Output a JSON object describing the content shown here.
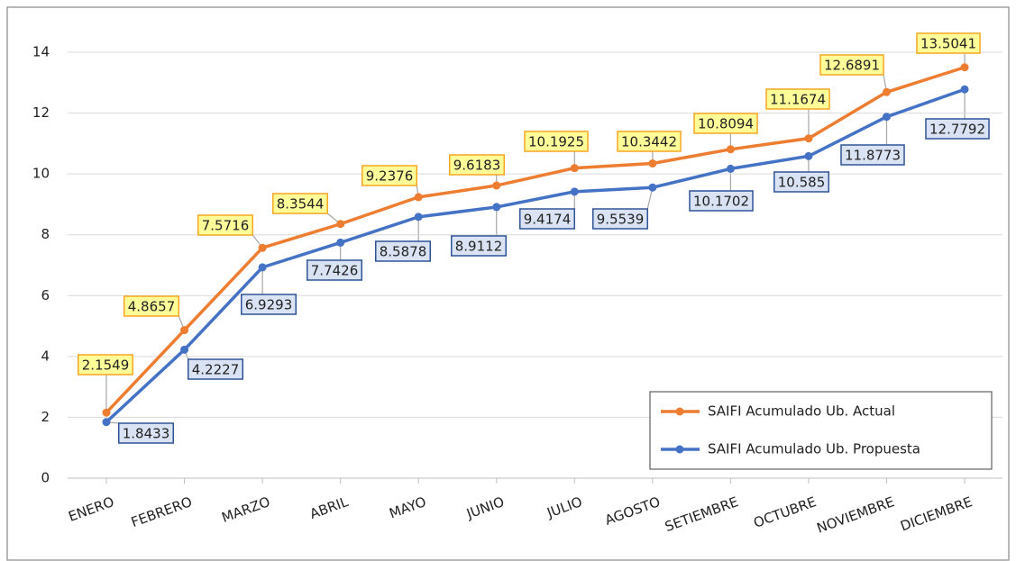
{
  "chart_data": {
    "type": "line",
    "categories": [
      "ENERO",
      "FEBRERO",
      "MARZO",
      "ABRIL",
      "MAYO",
      "JUNIO",
      "JULIO",
      "AGOSTO",
      "SETIEMBRE",
      "OCTUBRE",
      "NOVIEMBRE",
      "DICIEMBRE"
    ],
    "series": [
      {
        "name": "SAIFI Acumulado Ub. Actual",
        "color": "#ed7d31",
        "values": [
          2.1549,
          4.8657,
          7.5716,
          8.3544,
          9.2376,
          9.6183,
          10.1925,
          10.3442,
          10.8094,
          11.1674,
          12.6891,
          13.5041
        ]
      },
      {
        "name": "SAIFI Acumulado Ub. Propuesta",
        "color": "#4472c4",
        "values": [
          1.8433,
          4.2227,
          6.9293,
          7.7426,
          8.5878,
          8.9112,
          9.4174,
          9.5539,
          10.1702,
          10.585,
          11.8773,
          12.7792
        ]
      }
    ],
    "ylim": [
      0,
      14
    ],
    "yticks": [
      0,
      2,
      4,
      6,
      8,
      10,
      12,
      14
    ],
    "grid": true,
    "legend": "bottom-right"
  }
}
